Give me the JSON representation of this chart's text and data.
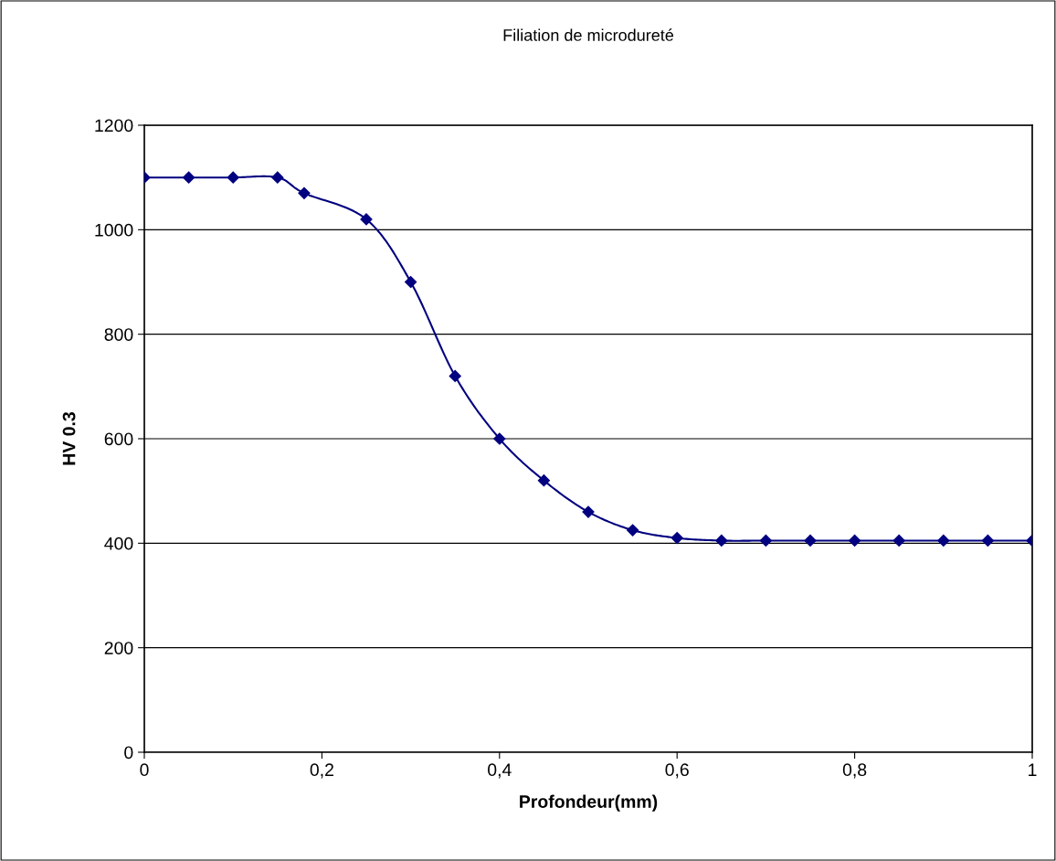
{
  "chart_data": {
    "type": "line",
    "title": "Filiation de microdureté",
    "xlabel": "Profondeur(mm)",
    "ylabel": "HV 0.3",
    "x": [
      0,
      0.05,
      0.1,
      0.15,
      0.18,
      0.25,
      0.3,
      0.35,
      0.4,
      0.45,
      0.5,
      0.55,
      0.6,
      0.65,
      0.7,
      0.75,
      0.8,
      0.85,
      0.9,
      0.95,
      1.0
    ],
    "series": [
      {
        "color": "#000080",
        "values": [
          1100,
          1100,
          1100,
          1100,
          1070,
          1020,
          900,
          720,
          600,
          520,
          460,
          425,
          410,
          405,
          405,
          405,
          405,
          405,
          405,
          405,
          405
        ]
      }
    ],
    "xlim": [
      0,
      1
    ],
    "xticks": [
      0,
      {
        "value": 0.2,
        "label": "0,2"
      },
      {
        "value": 0.4,
        "label": "0,4"
      },
      {
        "value": 0.6,
        "label": "0,6"
      },
      {
        "value": 0.8,
        "label": "0,8"
      },
      1
    ],
    "ylim": [
      0,
      1200
    ],
    "yticks": [
      0,
      200,
      400,
      600,
      800,
      1000,
      1200
    ],
    "grid": "y",
    "marker": "diamond",
    "line_style": "solid"
  }
}
